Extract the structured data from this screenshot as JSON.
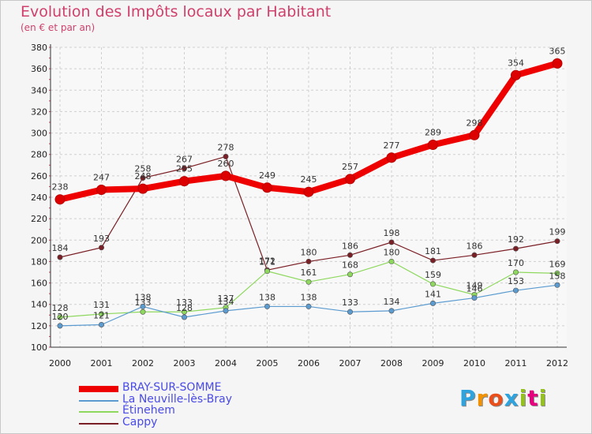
{
  "header": {
    "title": "Evolution des Impôts locaux par Habitant",
    "subtitle": "(en € et par an)"
  },
  "branding": {
    "logo_text": "Proxiti",
    "letter_colors": [
      "#2ea3dd",
      "#f39200",
      "#e94e1b",
      "#2ea3dd",
      "#95c11f",
      "#e6007e",
      "#95c11f"
    ]
  },
  "chart_data": {
    "type": "line",
    "title": "Evolution des Impôts locaux par Habitant",
    "subtitle": "(en € et par an)",
    "xlabel": "",
    "ylabel": "",
    "x": [
      "2000",
      "2001",
      "2002",
      "2003",
      "2004",
      "2005",
      "2006",
      "2007",
      "2008",
      "2009",
      "2010",
      "2011",
      "2012"
    ],
    "ylim": [
      100,
      380
    ],
    "yticks": [
      100,
      120,
      140,
      160,
      180,
      200,
      220,
      240,
      260,
      280,
      300,
      320,
      340,
      360,
      380
    ],
    "grid": true,
    "legend_position": "bottom-left",
    "series": [
      {
        "name": "Cappy",
        "color": "#7a1f25",
        "values": [
          184,
          193,
          258,
          267,
          278,
          172,
          180,
          186,
          198,
          181,
          186,
          192,
          199
        ]
      },
      {
        "name": "Étinehem",
        "color": "#8ed85e",
        "values": [
          128,
          131,
          133,
          133,
          137,
          171,
          161,
          168,
          180,
          159,
          149,
          170,
          169
        ]
      },
      {
        "name": "La Neuville-lès-Bray",
        "color": "#5b9bd0",
        "values": [
          120,
          121,
          138,
          128,
          134,
          138,
          138,
          133,
          134,
          141,
          146,
          153,
          158
        ]
      },
      {
        "name": "BRAY-SUR-SOMME",
        "color": "#ee0000",
        "values": [
          238,
          247,
          248,
          255,
          260,
          249,
          245,
          257,
          277,
          289,
          298,
          354,
          365
        ]
      }
    ],
    "legend_order": [
      "BRAY-SUR-SOMME",
      "La Neuville-lès-Bray",
      "Étinehem",
      "Cappy"
    ]
  }
}
